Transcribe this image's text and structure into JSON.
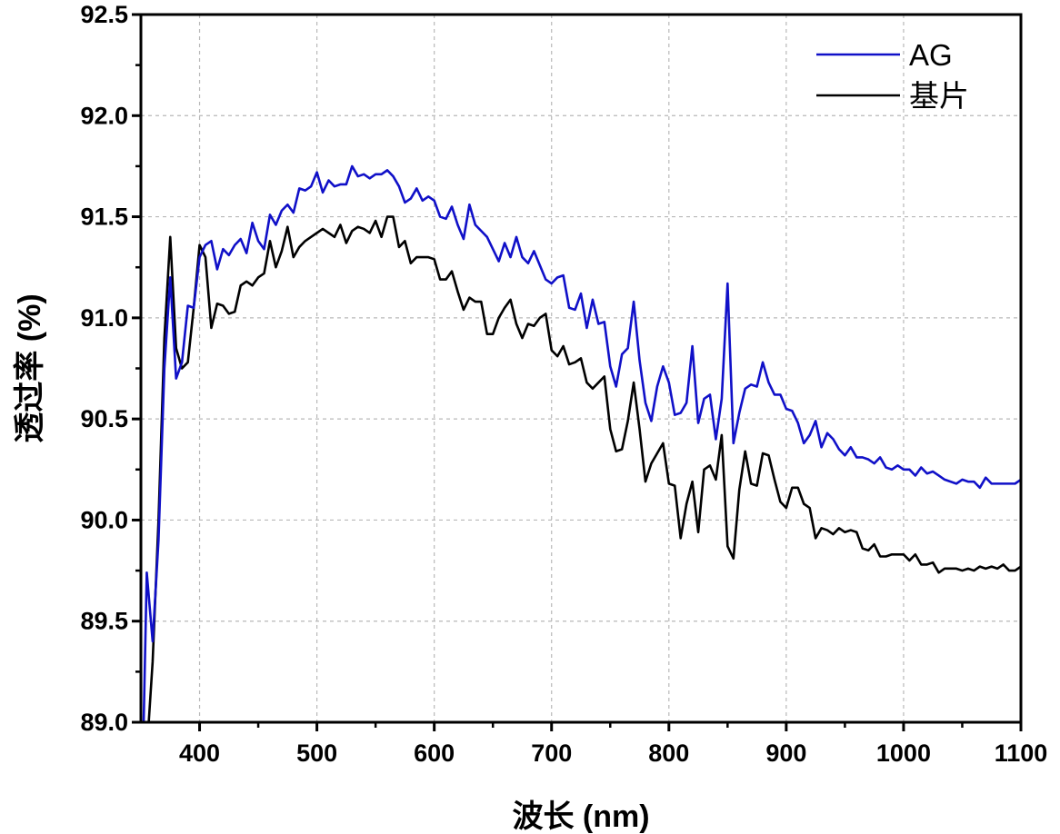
{
  "chart_data": {
    "type": "line",
    "title": "",
    "xlabel": "波长 (nm)",
    "ylabel": "透过率 (%)",
    "xlim": [
      350,
      1100
    ],
    "ylim": [
      89.0,
      92.5
    ],
    "xticks": [
      400,
      500,
      600,
      700,
      800,
      900,
      1000,
      1100
    ],
    "xtick_labels": [
      "400",
      "500",
      "600",
      "700",
      "800",
      "900",
      "1000",
      "1100"
    ],
    "yticks": [
      89.0,
      89.5,
      90.0,
      90.5,
      91.0,
      91.5,
      92.0,
      92.5
    ],
    "ytick_labels": [
      "89.0",
      "89.5",
      "90.0",
      "90.5",
      "91.0",
      "91.5",
      "92.0",
      "92.5"
    ],
    "grid": true,
    "legend_position": "top-right",
    "series": [
      {
        "name": "AG",
        "color": "#1010c8",
        "x": [
          352,
          355,
          360,
          365,
          370,
          375,
          380,
          385,
          390,
          395,
          400,
          405,
          410,
          415,
          420,
          425,
          430,
          435,
          440,
          445,
          450,
          455,
          460,
          465,
          470,
          475,
          480,
          485,
          490,
          495,
          500,
          505,
          510,
          515,
          520,
          525,
          530,
          535,
          540,
          545,
          550,
          555,
          560,
          565,
          570,
          575,
          580,
          585,
          590,
          595,
          600,
          605,
          610,
          615,
          620,
          625,
          630,
          635,
          640,
          645,
          650,
          655,
          660,
          665,
          670,
          675,
          680,
          685,
          690,
          695,
          700,
          705,
          710,
          715,
          720,
          725,
          730,
          735,
          740,
          745,
          750,
          755,
          760,
          765,
          770,
          775,
          780,
          785,
          790,
          795,
          800,
          805,
          810,
          815,
          820,
          825,
          830,
          835,
          840,
          845,
          850,
          855,
          860,
          865,
          870,
          875,
          880,
          885,
          890,
          895,
          900,
          905,
          910,
          915,
          920,
          925,
          930,
          935,
          940,
          945,
          950,
          955,
          960,
          965,
          970,
          975,
          980,
          985,
          990,
          995,
          1000,
          1005,
          1010,
          1015,
          1020,
          1025,
          1030,
          1035,
          1040,
          1045,
          1050,
          1055,
          1060,
          1065,
          1070,
          1075,
          1080,
          1085,
          1090,
          1095,
          1100
        ],
        "y": [
          88.9,
          89.74,
          89.4,
          89.9,
          90.75,
          91.2,
          90.7,
          90.78,
          91.06,
          91.05,
          91.3,
          91.36,
          91.38,
          91.24,
          91.34,
          91.31,
          91.36,
          91.39,
          91.32,
          91.47,
          91.38,
          91.34,
          91.51,
          91.46,
          91.53,
          91.56,
          91.52,
          91.64,
          91.63,
          91.65,
          91.72,
          91.62,
          91.68,
          91.65,
          91.66,
          91.66,
          91.75,
          91.7,
          91.71,
          91.69,
          91.71,
          91.71,
          91.73,
          91.7,
          91.65,
          91.57,
          91.59,
          91.64,
          91.58,
          91.6,
          91.58,
          91.5,
          91.49,
          91.55,
          91.46,
          91.39,
          91.56,
          91.46,
          91.43,
          91.4,
          91.34,
          91.28,
          91.37,
          91.3,
          91.4,
          91.3,
          91.27,
          91.33,
          91.26,
          91.19,
          91.17,
          91.2,
          91.21,
          91.05,
          91.04,
          91.12,
          90.95,
          91.09,
          90.97,
          90.98,
          90.76,
          90.66,
          90.82,
          90.85,
          91.08,
          90.79,
          90.58,
          90.49,
          90.66,
          90.76,
          90.68,
          90.52,
          90.53,
          90.58,
          90.86,
          90.48,
          90.6,
          90.62,
          90.4,
          90.6,
          91.17,
          90.38,
          90.53,
          90.65,
          90.67,
          90.66,
          90.78,
          90.68,
          90.62,
          90.62,
          90.55,
          90.54,
          90.48,
          90.38,
          90.42,
          90.49,
          90.36,
          90.43,
          90.4,
          90.35,
          90.32,
          90.36,
          90.31,
          90.31,
          90.3,
          90.28,
          90.31,
          90.26,
          90.25,
          90.27,
          90.25,
          90.25,
          90.22,
          90.26,
          90.23,
          90.24,
          90.22,
          90.2,
          90.19,
          90.18,
          90.2,
          90.19,
          90.19,
          90.16,
          90.21,
          90.18,
          90.18,
          90.18,
          90.18,
          90.18,
          90.2
        ]
      },
      {
        "name": "基片",
        "color": "#000000",
        "x": [
          352,
          355,
          360,
          365,
          370,
          375,
          380,
          385,
          390,
          395,
          400,
          405,
          410,
          415,
          420,
          425,
          430,
          435,
          440,
          445,
          450,
          455,
          460,
          465,
          470,
          475,
          480,
          485,
          490,
          495,
          500,
          505,
          510,
          515,
          520,
          525,
          530,
          535,
          540,
          545,
          550,
          555,
          560,
          565,
          570,
          575,
          580,
          585,
          590,
          595,
          600,
          605,
          610,
          615,
          620,
          625,
          630,
          635,
          640,
          645,
          650,
          655,
          660,
          665,
          670,
          675,
          680,
          685,
          690,
          695,
          700,
          705,
          710,
          715,
          720,
          725,
          730,
          735,
          740,
          745,
          750,
          755,
          760,
          765,
          770,
          775,
          780,
          785,
          790,
          795,
          800,
          805,
          810,
          815,
          820,
          825,
          830,
          835,
          840,
          845,
          850,
          855,
          860,
          865,
          870,
          875,
          880,
          885,
          890,
          895,
          900,
          905,
          910,
          915,
          920,
          925,
          930,
          935,
          940,
          945,
          950,
          955,
          960,
          965,
          970,
          975,
          980,
          985,
          990,
          995,
          1000,
          1005,
          1010,
          1015,
          1020,
          1025,
          1030,
          1035,
          1040,
          1045,
          1050,
          1055,
          1060,
          1065,
          1070,
          1075,
          1080,
          1085,
          1090,
          1095,
          1100
        ],
        "y": [
          88.9,
          88.85,
          89.3,
          90.0,
          90.9,
          91.4,
          90.85,
          90.75,
          90.78,
          91.05,
          91.36,
          91.3,
          90.95,
          91.07,
          91.06,
          91.02,
          91.03,
          91.16,
          91.18,
          91.16,
          91.2,
          91.22,
          91.38,
          91.25,
          91.33,
          91.45,
          91.3,
          91.35,
          91.38,
          91.4,
          91.42,
          91.44,
          91.42,
          91.4,
          91.46,
          91.37,
          91.43,
          91.45,
          91.44,
          91.42,
          91.48,
          91.4,
          91.5,
          91.5,
          91.35,
          91.38,
          91.27,
          91.3,
          91.3,
          91.3,
          91.29,
          91.19,
          91.19,
          91.23,
          91.13,
          91.04,
          91.1,
          91.08,
          91.08,
          90.92,
          90.92,
          91.0,
          91.05,
          91.09,
          90.97,
          90.9,
          90.97,
          90.96,
          91.0,
          91.02,
          90.84,
          90.81,
          90.86,
          90.77,
          90.78,
          90.8,
          90.68,
          90.65,
          90.68,
          90.71,
          90.45,
          90.34,
          90.35,
          90.49,
          90.68,
          90.45,
          90.19,
          90.28,
          90.33,
          90.38,
          90.18,
          90.17,
          89.91,
          90.08,
          90.19,
          89.94,
          90.25,
          90.27,
          90.2,
          90.42,
          89.87,
          89.81,
          90.15,
          90.34,
          90.18,
          90.17,
          90.33,
          90.32,
          90.2,
          90.09,
          90.06,
          90.16,
          90.16,
          90.08,
          90.06,
          89.91,
          89.96,
          89.95,
          89.93,
          89.96,
          89.94,
          89.95,
          89.94,
          89.86,
          89.85,
          89.88,
          89.82,
          89.82,
          89.83,
          89.83,
          89.83,
          89.8,
          89.83,
          89.78,
          89.78,
          89.79,
          89.74,
          89.76,
          89.76,
          89.76,
          89.75,
          89.76,
          89.75,
          89.77,
          89.76,
          89.77,
          89.76,
          89.78,
          89.75,
          89.75,
          89.77
        ]
      }
    ]
  }
}
